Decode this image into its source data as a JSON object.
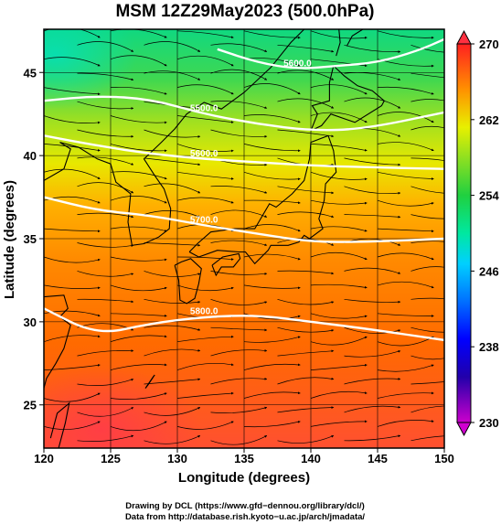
{
  "chart_data": {
    "type": "heatmap",
    "title": "MSM 12Z29May2023 (500.0hPa)",
    "xlabel": "Longitude (degrees)",
    "ylabel": "Latitude  (degrees)",
    "xlim": [
      120,
      150
    ],
    "ylim": [
      22.4,
      47.6
    ],
    "x_ticks": [
      "120",
      "125",
      "130",
      "135",
      "140",
      "145",
      "150"
    ],
    "y_ticks": [
      "25",
      "30",
      "35",
      "40",
      "45"
    ],
    "colorbar": {
      "range": [
        230,
        270
      ],
      "ticks": [
        "230",
        "238",
        "246",
        "254",
        "262",
        "270"
      ]
    },
    "contours": [
      {
        "label": "5800.0",
        "lon": [
          120,
          124,
          128,
          132,
          136,
          140,
          144,
          150
        ],
        "lat": [
          30.8,
          29.2,
          29.9,
          30.3,
          30.4,
          30.0,
          29.6,
          28.9
        ]
      },
      {
        "label": "5700.0",
        "lon": [
          120,
          124,
          128,
          132,
          136,
          140,
          144,
          150
        ],
        "lat": [
          37.5,
          36.7,
          36.4,
          35.8,
          35.3,
          34.8,
          34.8,
          35.0
        ]
      },
      {
        "label": "5600.0",
        "lon": [
          120,
          124,
          128,
          132,
          136,
          140,
          144,
          150
        ],
        "lat": [
          41.2,
          40.6,
          40.1,
          39.8,
          39.6,
          39.4,
          39.3,
          39.2
        ]
      },
      {
        "label": "5500.0",
        "lon": [
          120,
          124,
          128,
          132,
          136,
          140,
          144,
          150
        ],
        "lat": [
          43.3,
          43.6,
          43.4,
          42.5,
          41.9,
          41.5,
          41.6,
          42.6
        ]
      },
      {
        "label": "5600.0",
        "lon": [
          133,
          136,
          139,
          142,
          145,
          148,
          150
        ],
        "lat": [
          46.4,
          45.6,
          45.2,
          45.4,
          45.6,
          46.3,
          47.0
        ]
      }
    ]
  },
  "credits": {
    "line1": "Drawing by DCL (https://www.gfd−dennou.org/library/dcl/)",
    "line2": "Data from http://database.rish.kyoto−u.ac.jp/arch/jmadata/"
  }
}
